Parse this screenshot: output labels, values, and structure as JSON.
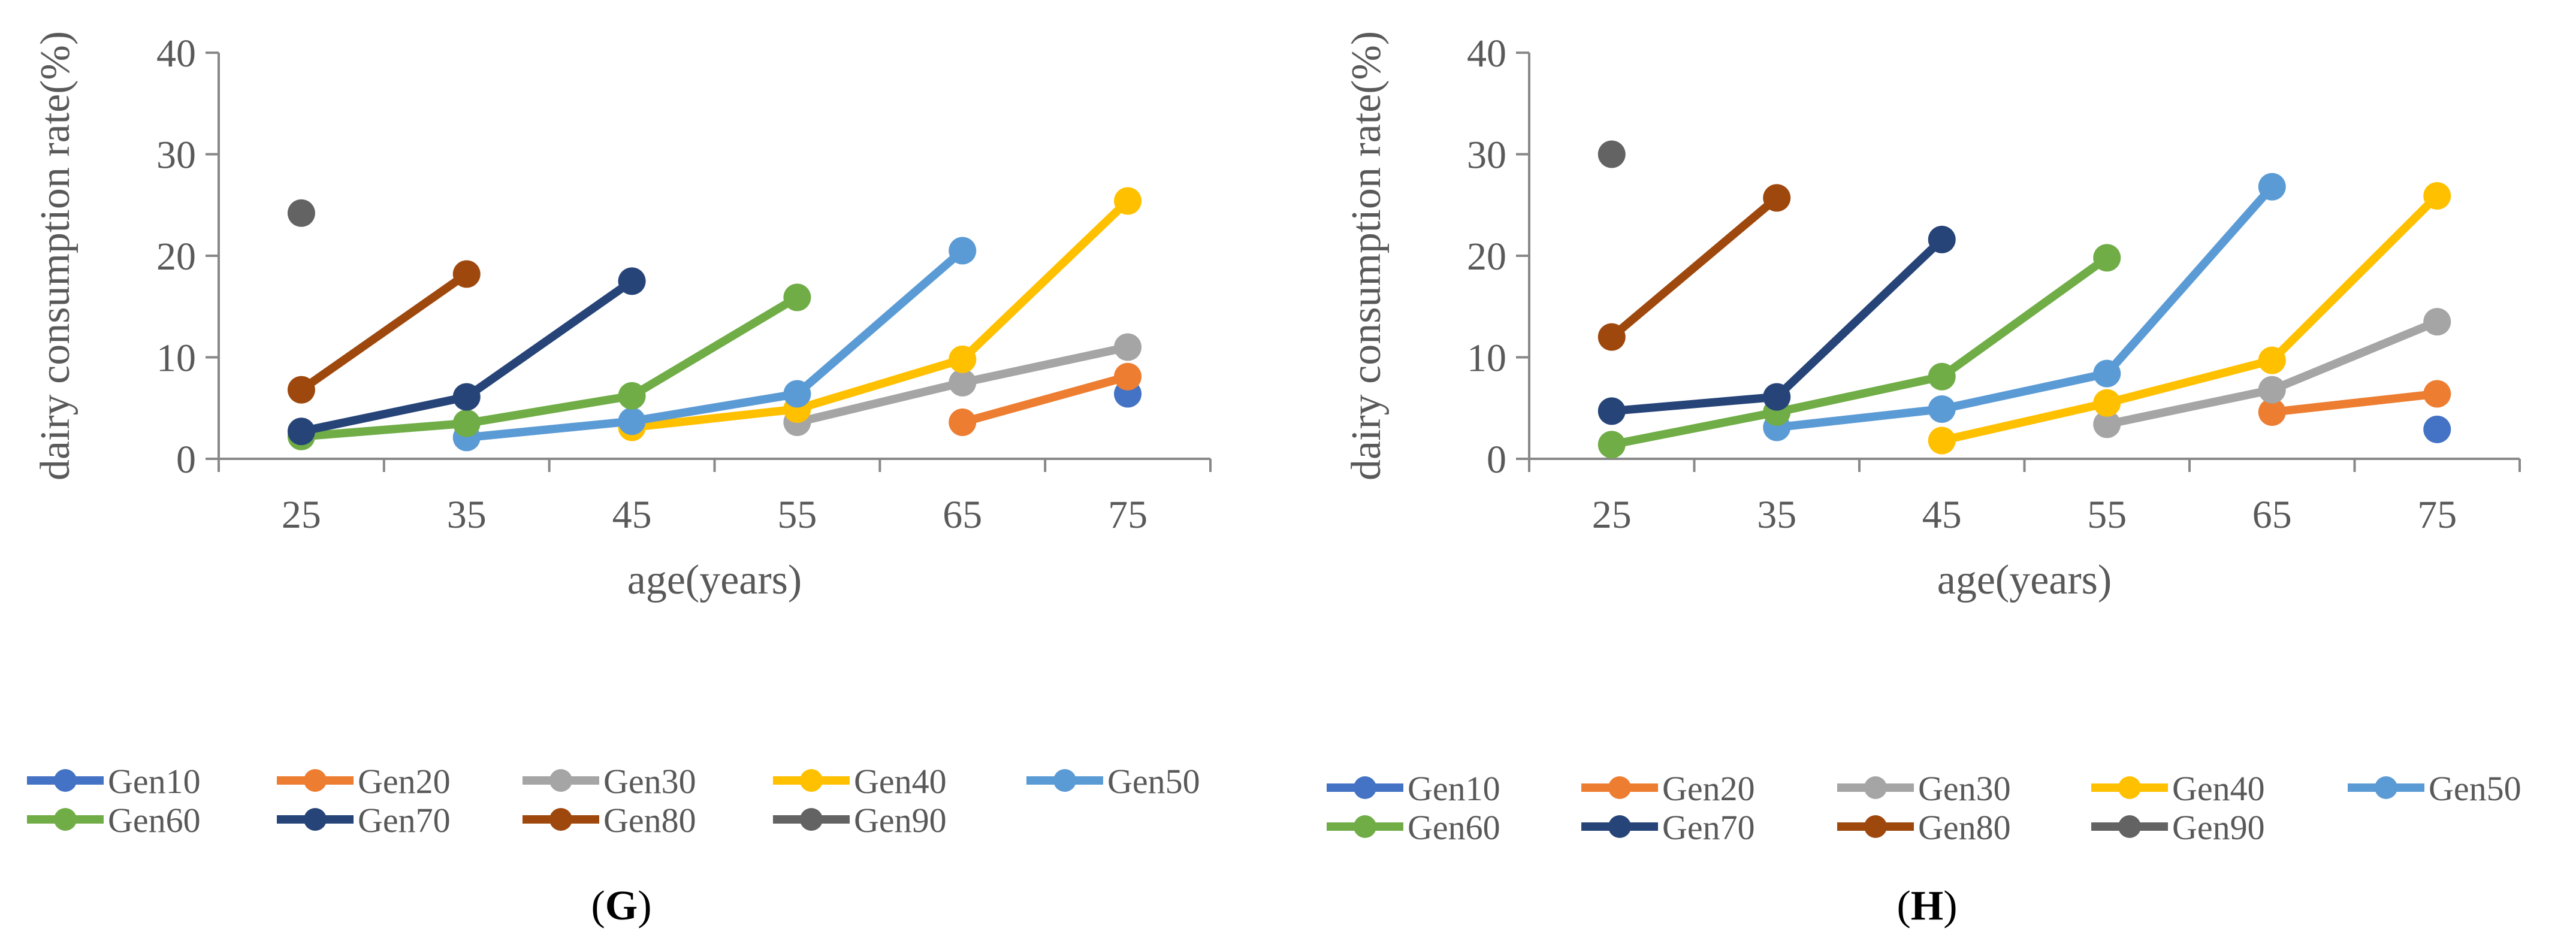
{
  "series_colors": {
    "Gen10": "#4472C4",
    "Gen20": "#ED7D31",
    "Gen30": "#A5A5A5",
    "Gen40": "#FFC000",
    "Gen50": "#5B9BD5",
    "Gen60": "#70AD47",
    "Gen70": "#264478",
    "Gen80": "#9E480E",
    "Gen90": "#636363"
  },
  "legend_rows": [
    [
      "Gen10",
      "Gen20",
      "Gen30",
      "Gen40",
      "Gen50"
    ],
    [
      "Gen60",
      "Gen70",
      "Gen80",
      "Gen90"
    ]
  ],
  "chart_data": [
    {
      "panel": "G",
      "panel_letter": "G",
      "type": "line",
      "xlabel": "age(years)",
      "ylabel": "dairy consumption rate(%)",
      "categories": [
        "25",
        "35",
        "45",
        "55",
        "65",
        "75"
      ],
      "ylim": [
        0,
        40
      ],
      "yticks": [
        "0",
        "10",
        "20",
        "30",
        "40"
      ],
      "legend_position": "bottom",
      "series": [
        {
          "name": "Gen10",
          "values": [
            null,
            null,
            null,
            null,
            null,
            6.4
          ]
        },
        {
          "name": "Gen20",
          "values": [
            null,
            null,
            null,
            null,
            3.6,
            8.1
          ]
        },
        {
          "name": "Gen30",
          "values": [
            null,
            null,
            null,
            3.6,
            7.5,
            11.0
          ]
        },
        {
          "name": "Gen40",
          "values": [
            null,
            null,
            3.1,
            4.9,
            9.8,
            25.4
          ]
        },
        {
          "name": "Gen50",
          "values": [
            null,
            2.1,
            3.7,
            6.4,
            20.5,
            null
          ]
        },
        {
          "name": "Gen60",
          "values": [
            2.2,
            3.5,
            6.2,
            15.9,
            null,
            null
          ]
        },
        {
          "name": "Gen70",
          "values": [
            2.7,
            6.1,
            17.5,
            null,
            null,
            null
          ]
        },
        {
          "name": "Gen80",
          "values": [
            6.8,
            18.2,
            null,
            null,
            null,
            null
          ]
        },
        {
          "name": "Gen90",
          "values": [
            24.2,
            null,
            null,
            null,
            null,
            null
          ]
        }
      ]
    },
    {
      "panel": "H",
      "panel_letter": "H",
      "type": "line",
      "xlabel": "age(years)",
      "ylabel": "dairy consumption rate(%)",
      "categories": [
        "25",
        "35",
        "45",
        "55",
        "65",
        "75"
      ],
      "ylim": [
        0,
        40
      ],
      "yticks": [
        "0",
        "10",
        "20",
        "30",
        "40"
      ],
      "legend_position": "bottom",
      "series": [
        {
          "name": "Gen10",
          "values": [
            null,
            null,
            null,
            null,
            null,
            2.9
          ]
        },
        {
          "name": "Gen20",
          "values": [
            null,
            null,
            null,
            null,
            4.6,
            6.4
          ]
        },
        {
          "name": "Gen30",
          "values": [
            null,
            null,
            null,
            3.4,
            6.8,
            13.5
          ]
        },
        {
          "name": "Gen40",
          "values": [
            null,
            null,
            1.8,
            5.5,
            9.7,
            25.9
          ]
        },
        {
          "name": "Gen50",
          "values": [
            null,
            3.1,
            4.9,
            8.4,
            26.8,
            null
          ]
        },
        {
          "name": "Gen60",
          "values": [
            1.4,
            4.6,
            8.1,
            19.8,
            null,
            null
          ]
        },
        {
          "name": "Gen70",
          "values": [
            4.7,
            6.1,
            21.6,
            null,
            null,
            null
          ]
        },
        {
          "name": "Gen80",
          "values": [
            12.0,
            25.7,
            null,
            null,
            null,
            null
          ]
        },
        {
          "name": "Gen90",
          "values": [
            30.0,
            null,
            null,
            null,
            null,
            null
          ]
        }
      ]
    }
  ]
}
